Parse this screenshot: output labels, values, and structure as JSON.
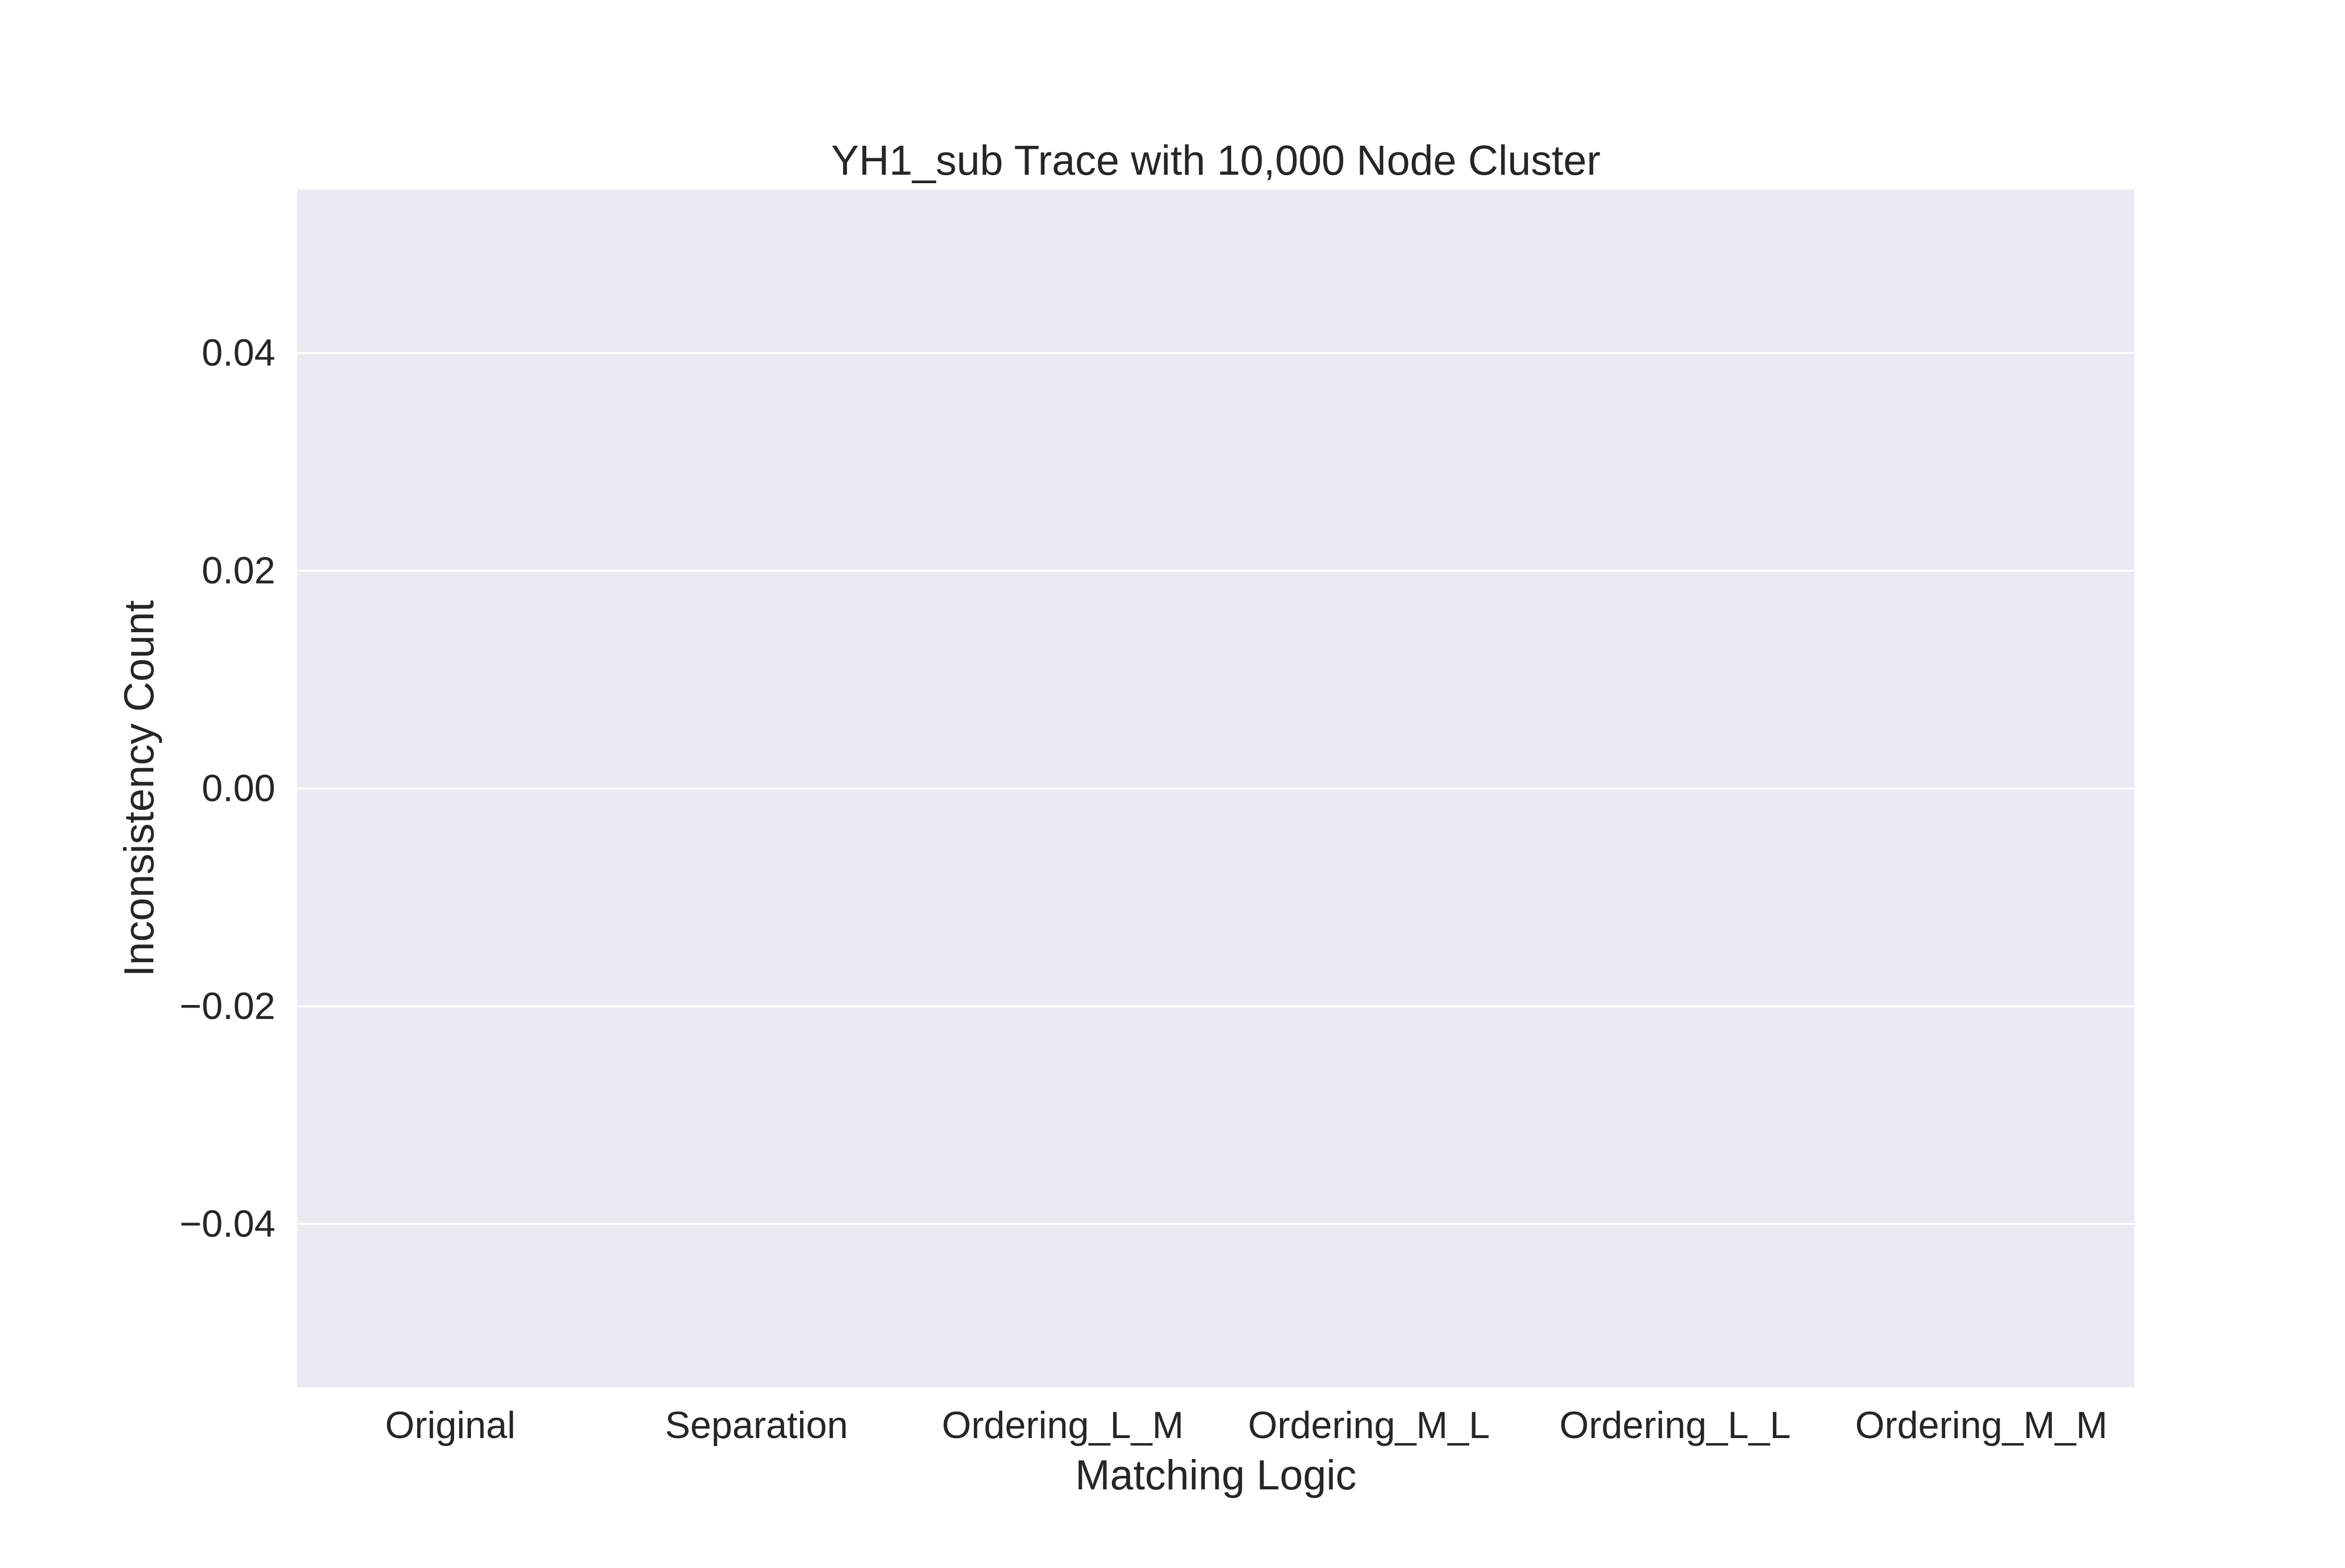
{
  "chart_data": {
    "type": "bar",
    "title": "YH1_sub Trace with 10,000 Node Cluster",
    "xlabel": "Matching Logic",
    "ylabel": "Inconsistency Count",
    "categories": [
      "Original",
      "Separation",
      "Ordering_L_M",
      "Ordering_M_L",
      "Ordering_L_L",
      "Ordering_M_M"
    ],
    "values": [
      0,
      0,
      0,
      0,
      0,
      0
    ],
    "ylim": [
      -0.055,
      0.055
    ],
    "yticks": [
      0.04,
      0.02,
      0.0,
      -0.02,
      -0.04
    ],
    "ytick_labels": [
      "0.04",
      "0.02",
      "0.00",
      "−0.02",
      "−0.04"
    ],
    "grid": true,
    "colors": {
      "plot_background": "#eaeaf2",
      "grid": "#ffffff",
      "bar_line": "#3f3f3f",
      "text": "#262626"
    }
  }
}
